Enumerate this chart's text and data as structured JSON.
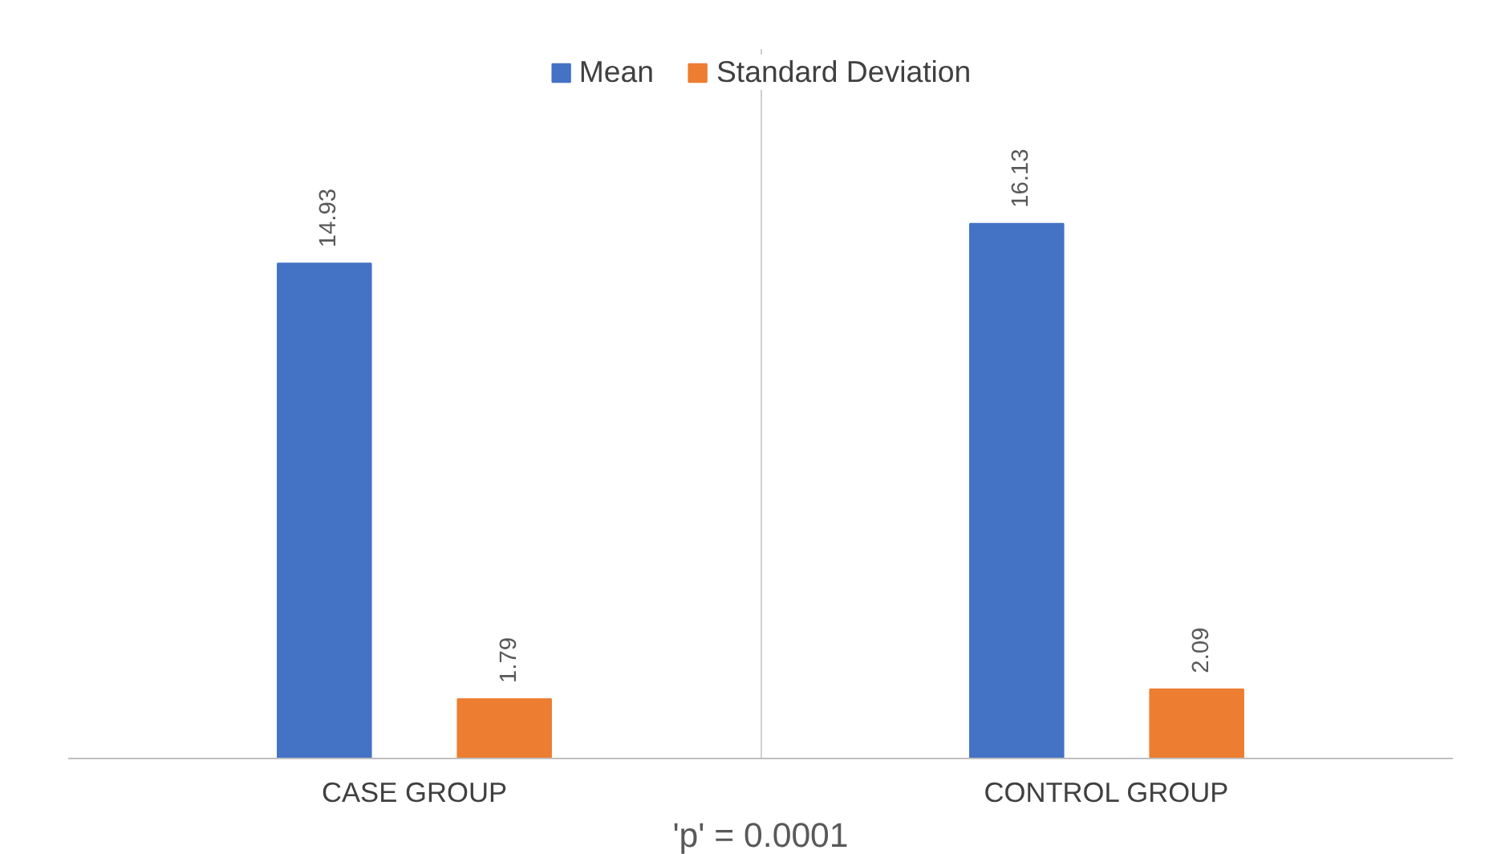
{
  "chart_data": {
    "type": "bar",
    "categories": [
      "CASE GROUP",
      "CONTROL GROUP"
    ],
    "series": [
      {
        "name": "Mean",
        "color": "#4472c4",
        "values": [
          14.93,
          16.13
        ]
      },
      {
        "name": "Standard Deviation",
        "color": "#ed7d31",
        "values": [
          1.79,
          2.09
        ]
      }
    ],
    "ylim": [
      0,
      21.4
    ],
    "tick_labels": "x",
    "data_labels": true,
    "grid": "x",
    "legend": "top",
    "annotations": [
      "'p' = 0.0001"
    ]
  }
}
